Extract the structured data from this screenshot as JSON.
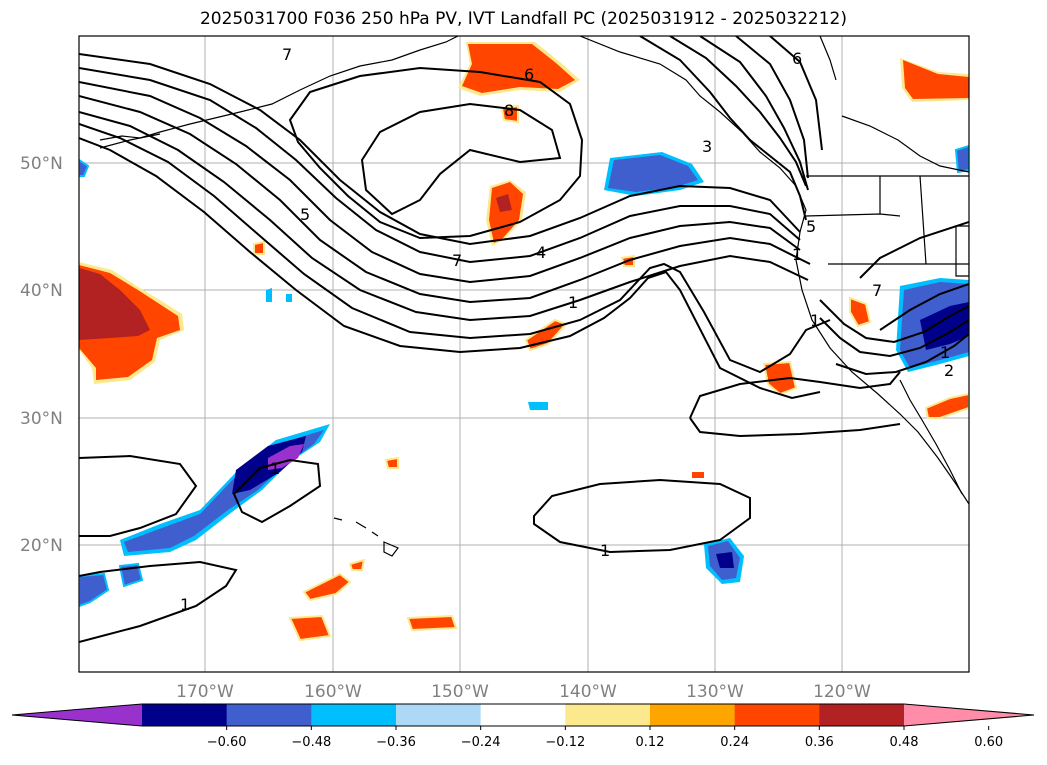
{
  "title": "2025031700 F036 250 hPa PV, IVT Landfall PC (2025031912 - 2025032212)",
  "map": {
    "lat_labels": [
      "50°N",
      "40°N",
      "30°N",
      "20°N"
    ],
    "lon_labels": [
      "170°W",
      "160°W",
      "150°W",
      "140°W",
      "130°W",
      "120°W"
    ],
    "contour_labels": [
      "7",
      "6",
      "8",
      "3",
      "6",
      "5",
      "7",
      "4",
      "1",
      "5",
      "7",
      "1",
      "2",
      "1",
      "1",
      "1",
      "1",
      "1"
    ]
  },
  "colorbar": {
    "tick_labels": [
      "−0.60",
      "−0.48",
      "−0.36",
      "−0.24",
      "−0.12",
      "0.12",
      "0.24",
      "0.36",
      "0.48",
      "0.60"
    ],
    "colors": [
      "#9932cc",
      "#00008b",
      "#3f5fcf",
      "#00bfff",
      "#add8f6",
      "#ffffff",
      "#fce98e",
      "#ffa500",
      "#ff4500",
      "#b22222",
      "#ff8ca8"
    ]
  }
}
